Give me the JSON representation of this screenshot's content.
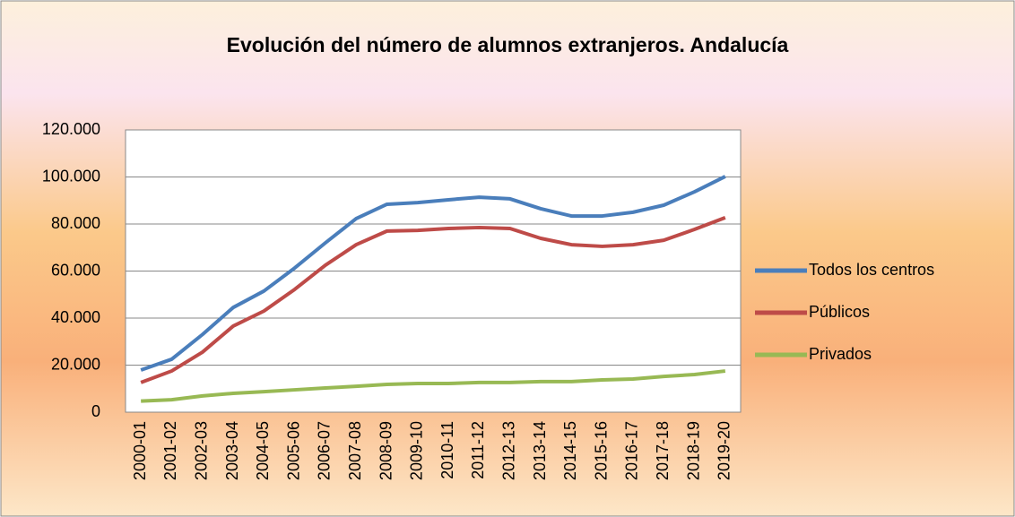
{
  "chart_data": {
    "type": "line",
    "title": "Evolución del número de alumnos extranjeros. Andalucía",
    "categories": [
      "2000-01",
      "2001-02",
      "2002-03",
      "2003-04",
      "2004-05",
      "2005-06",
      "2006-07",
      "2007-08",
      "2008-09",
      "2009-10",
      "2010-11",
      "2011-12",
      "2012-13",
      "2013-14",
      "2014-15",
      "2015-16",
      "2016-17",
      "2017-18",
      "2018-19",
      "2019-20"
    ],
    "series": [
      {
        "name": "Todos los centros",
        "color": "#4a7ebb",
        "values": [
          17900,
          22500,
          33000,
          44500,
          51500,
          61300,
          72000,
          82300,
          88400,
          89100,
          90300,
          91400,
          90700,
          86500,
          83400,
          83400,
          85000,
          88000,
          93700,
          100200
        ]
      },
      {
        "name": "Públicos",
        "color": "#be4b48",
        "values": [
          12600,
          17500,
          25500,
          36600,
          43000,
          52200,
          62500,
          71200,
          77000,
          77300,
          78100,
          78500,
          78100,
          73900,
          71200,
          70500,
          71200,
          73100,
          77700,
          82700
        ]
      },
      {
        "name": "Privados",
        "color": "#98b954",
        "values": [
          4700,
          5300,
          6900,
          8000,
          8700,
          9500,
          10300,
          11000,
          11800,
          12200,
          12200,
          12600,
          12600,
          13000,
          13000,
          13700,
          14100,
          15200,
          16000,
          17500
        ]
      }
    ],
    "ylim": [
      0,
      120000
    ],
    "yticks": [
      0,
      {
        "value": 20000,
        "label": "20.000"
      },
      {
        "value": 40000,
        "label": "40.000"
      },
      {
        "value": 60000,
        "label": "60.000"
      },
      {
        "value": 80000,
        "label": "80.000"
      },
      {
        "value": 100000,
        "label": "100.000"
      },
      {
        "value": 120000,
        "label": "120.000"
      }
    ],
    "grid": true,
    "legend": "right"
  }
}
